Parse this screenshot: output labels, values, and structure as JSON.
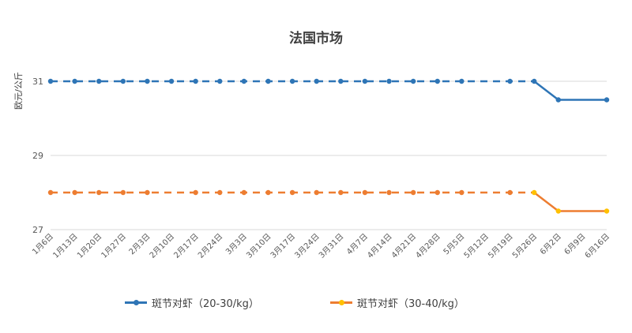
{
  "chart_data": {
    "type": "line",
    "title": "法国市场",
    "ylabel": "欧元/公斤",
    "xlabel": "",
    "ylim": [
      27,
      32
    ],
    "yticks": [
      27,
      29,
      31
    ],
    "grid": true,
    "legend_position": "bottom",
    "categories": [
      "1月6日",
      "1月13日",
      "1月20日",
      "1月27日",
      "2月3日",
      "2月10日",
      "2月17日",
      "2月24日",
      "3月3日",
      "3月10日",
      "3月17日",
      "3月24日",
      "3月31日",
      "4月7日",
      "4月14日",
      "4月21日",
      "4月28日",
      "5月5日",
      "5月12日",
      "5月19日",
      "5月26日",
      "6月2日",
      "6月9日",
      "6月16日"
    ],
    "series": [
      {
        "name": "斑节对虾（20-30/kg）",
        "color": "#2E75B6",
        "marker_color": "#2E75B6",
        "values": [
          31,
          31,
          31,
          31,
          31,
          31,
          31,
          31,
          31,
          31,
          31,
          31,
          31,
          31,
          31,
          31,
          31,
          31,
          null,
          31,
          31,
          30.5,
          null,
          30.5
        ]
      },
      {
        "name": "斑节对虾（30-40/kg）",
        "color": "#ED7D31",
        "marker_color": "#FFC000",
        "values": [
          28,
          28,
          28,
          28,
          28,
          null,
          28,
          28,
          28,
          28,
          28,
          28,
          28,
          28,
          28,
          28,
          28,
          28,
          null,
          28,
          28,
          27.5,
          null,
          27.5
        ]
      }
    ]
  }
}
